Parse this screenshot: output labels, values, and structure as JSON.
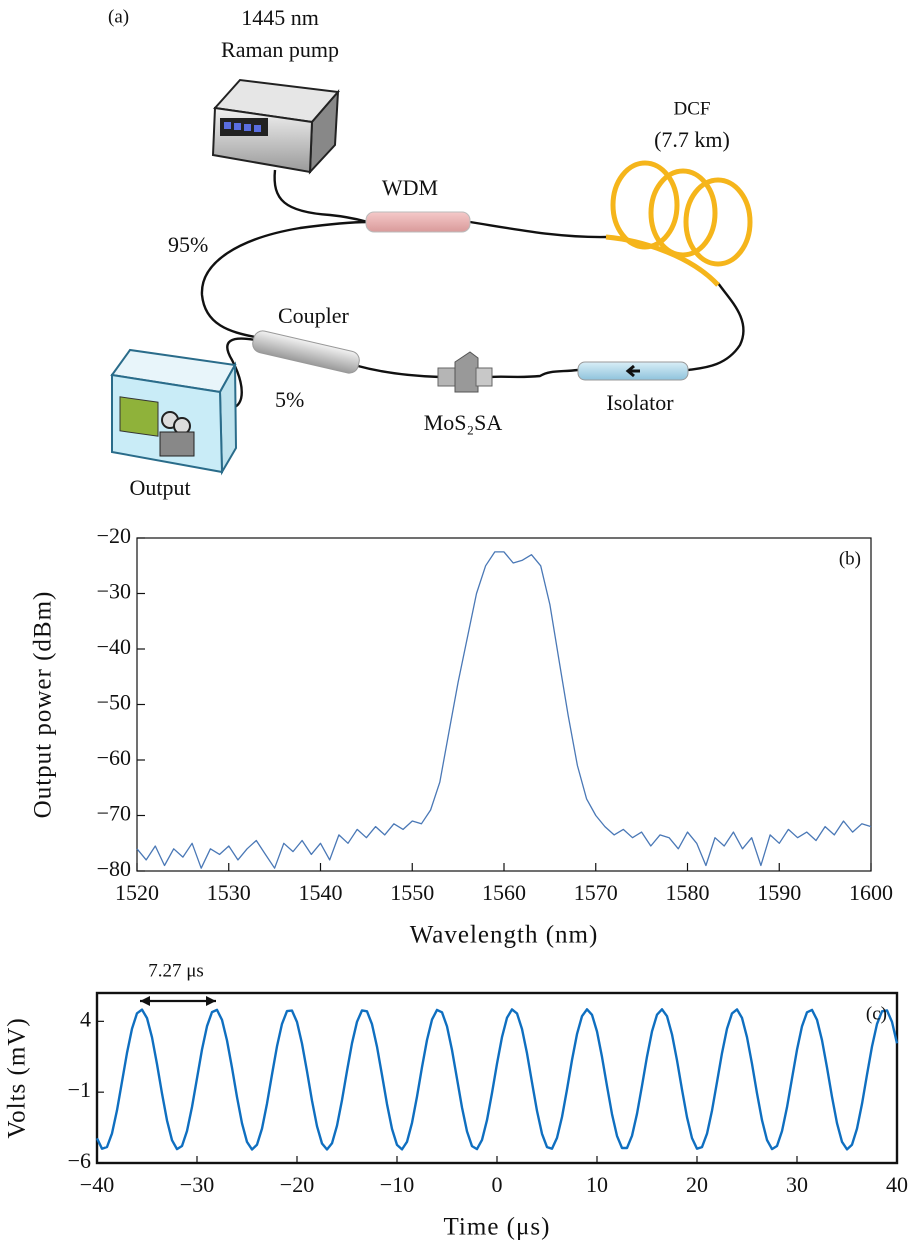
{
  "diagram": {
    "panel_label": "(a)",
    "pump_wavelength": "1445 nm",
    "pump_name": "Raman pump",
    "dcf": "DCF",
    "dcf_length": "(7.7 km)",
    "wdm": "WDM",
    "ratio_high": "95%",
    "coupler": "Coupler",
    "ratio_low": "5%",
    "output": "Output",
    "sa": "MoS₂SA",
    "isolator": "Isolator"
  },
  "chart_data": [
    {
      "type": "line",
      "panel_label": "(b)",
      "x_label": "Wavelength (nm)",
      "y_label": "Output power (dBm)",
      "xlim": [
        1520,
        1600
      ],
      "xticks": [
        1520,
        1530,
        1540,
        1550,
        1560,
        1570,
        1580,
        1590,
        1600
      ],
      "ylim": [
        -80,
        -20
      ],
      "yticks": [
        {
          "value": -80,
          "label": "−80"
        },
        {
          "value": -70,
          "label": "−70"
        },
        {
          "value": -60,
          "label": "−60"
        },
        {
          "value": -50,
          "label": "−50"
        },
        {
          "value": -40,
          "label": "−40"
        },
        {
          "value": -30,
          "label": "−30"
        },
        {
          "value": -20,
          "label": "−20"
        }
      ],
      "color": "#4a78b6",
      "x": [
        1520,
        1521,
        1522,
        1523,
        1524,
        1525,
        1526,
        1527,
        1528,
        1529,
        1530,
        1531,
        1532,
        1533,
        1534,
        1535,
        1536,
        1537,
        1538,
        1539,
        1540,
        1541,
        1542,
        1543,
        1544,
        1545,
        1546,
        1547,
        1548,
        1549,
        1550,
        1551,
        1552,
        1553,
        1554,
        1555,
        1556,
        1557,
        1558,
        1559,
        1560,
        1561,
        1562,
        1563,
        1564,
        1565,
        1566,
        1567,
        1568,
        1569,
        1570,
        1571,
        1572,
        1573,
        1574,
        1575,
        1576,
        1577,
        1578,
        1579,
        1580,
        1581,
        1582,
        1583,
        1584,
        1585,
        1586,
        1587,
        1588,
        1589,
        1590,
        1591,
        1592,
        1593,
        1594,
        1595,
        1596,
        1597,
        1598,
        1599,
        1600
      ],
      "values": [
        -76,
        -78,
        -75.5,
        -79,
        -76,
        -77.5,
        -75,
        -79.5,
        -76,
        -77,
        -75.5,
        -78,
        -76,
        -74.5,
        -77,
        -79.5,
        -75,
        -76.5,
        -74.5,
        -77,
        -75,
        -78,
        -73.5,
        -75,
        -72.5,
        -74,
        -72,
        -73.5,
        -71.5,
        -72.5,
        -71,
        -71.5,
        -69,
        -64,
        -55,
        -46,
        -38,
        -30,
        -25,
        -22.5,
        -22.5,
        -24.5,
        -24,
        -23,
        -25,
        -32,
        -42,
        -52,
        -61,
        -67,
        -70,
        -72,
        -73.5,
        -72.5,
        -74,
        -73,
        -75.5,
        -73.5,
        -74,
        -76,
        -73,
        -75,
        -79,
        -74,
        -75.5,
        -73,
        -76,
        -74,
        -79,
        -73.5,
        -75,
        -72.5,
        -74,
        -73,
        -74.5,
        -72,
        -73.5,
        -71,
        -73,
        -71.5,
        -72
      ]
    },
    {
      "type": "line",
      "panel_label": "(c)",
      "x_label": "Time (μs)",
      "y_label": "Volts (mV)",
      "annotation": "7.27 μs",
      "xlim": [
        -40,
        40
      ],
      "xticks": [
        {
          "value": -40,
          "label": "−40"
        },
        {
          "value": -30,
          "label": "−30"
        },
        {
          "value": -20,
          "label": "−20"
        },
        {
          "value": -10,
          "label": "−10"
        },
        0,
        10,
        20,
        30,
        40
      ],
      "ylim": [
        -6,
        6
      ],
      "yticks": [
        {
          "value": -6,
          "label": "−6"
        },
        {
          "value": -1,
          "label": "−1"
        },
        4
      ],
      "color": "#0f6fc0",
      "x": [
        -40,
        -39.5,
        -39,
        -38.5,
        -38,
        -37.5,
        -37,
        -36.5,
        -36,
        -35.5,
        -35,
        -34.5,
        -34,
        -33.5,
        -33,
        -32.5,
        -32,
        -31.5,
        -31,
        -30.5,
        -30,
        -29.5,
        -29,
        -28.5,
        -28,
        -27.5,
        -27,
        -26.5,
        -26,
        -25.5,
        -25,
        -24.5,
        -24,
        -23.5,
        -23,
        -22.5,
        -22,
        -21.5,
        -21,
        -20.5,
        -20,
        -19.5,
        -19,
        -18.5,
        -18,
        -17.5,
        -17,
        -16.5,
        -16,
        -15.5,
        -15,
        -14.5,
        -14,
        -13.5,
        -13,
        -12.5,
        -12,
        -11.5,
        -11,
        -10.5,
        -10,
        -9.5,
        -9,
        -8.5,
        -8,
        -7.5,
        -7,
        -6.5,
        -6,
        -5.5,
        -5,
        -4.5,
        -4,
        -3.5,
        -3,
        -2.5,
        -2,
        -1.5,
        -1,
        -0.5,
        0,
        0.5,
        1,
        1.5,
        2,
        2.5,
        3,
        3.5,
        4,
        4.5,
        5,
        5.5,
        6,
        6.5,
        7,
        7.5,
        8,
        8.5,
        9,
        9.5,
        10,
        10.5,
        11,
        11.5,
        12,
        12.5,
        13,
        13.5,
        14,
        14.5,
        15,
        15.5,
        16,
        16.5,
        17,
        17.5,
        18,
        18.5,
        19,
        19.5,
        20,
        20.5,
        21,
        21.5,
        22,
        22.5,
        23,
        23.5,
        24,
        24.5,
        25,
        25.5,
        26,
        26.5,
        27,
        27.5,
        28,
        28.5,
        29,
        29.5,
        30,
        30.5,
        31,
        31.5,
        32,
        32.5,
        33,
        33.5,
        34,
        34.5,
        35,
        35.5,
        36,
        36.5,
        37,
        37.5,
        38,
        38.5,
        39,
        39.5,
        40
      ],
      "values": [
        -4.26,
        -4.99,
        -4.87,
        -3.91,
        -2.28,
        -0.26,
        1.77,
        3.48,
        4.57,
        4.83,
        4.23,
        2.87,
        0.98,
        -1.09,
        -2.99,
        -4.39,
        -5.02,
        -4.8,
        -3.74,
        -2.05,
        -0.02,
        2.01,
        3.66,
        4.65,
        4.81,
        4.1,
        2.65,
        0.73,
        -1.35,
        -3.2,
        -4.51,
        -5.05,
        -4.71,
        -3.57,
        -1.81,
        0.25,
        2.24,
        3.82,
        4.72,
        4.76,
        3.95,
        2.43,
        0.47,
        -1.6,
        -3.4,
        -4.62,
        -5.05,
        -4.61,
        -3.37,
        -1.56,
        0.5,
        2.46,
        3.97,
        4.77,
        4.71,
        3.8,
        2.21,
        0.21,
        -1.84,
        -3.59,
        -4.72,
        -5.04,
        -4.5,
        -3.17,
        -1.31,
        0.76,
        2.68,
        4.12,
        4.81,
        4.64,
        3.64,
        1.98,
        -0.05,
        -2.08,
        -3.77,
        -4.81,
        -5.02,
        -4.37,
        -2.97,
        -1.06,
        1.01,
        2.89,
        4.25,
        4.84,
        4.56,
        3.46,
        1.74,
        -0.31,
        -2.32,
        -3.94,
        -4.88,
        -4.99,
        -4.23,
        -2.75,
        -0.81,
        1.27,
        3.1,
        4.36,
        4.85,
        4.46,
        3.28,
        1.49,
        -0.57,
        -2.55,
        -4.09,
        -4.94,
        -4.94,
        -4.08,
        -2.53,
        -0.55,
        1.51,
        3.29,
        4.47,
        4.85,
        4.36,
        3.08,
        1.25,
        -0.82,
        -2.77,
        -4.24,
        -4.99,
        -4.88,
        -3.93,
        -2.3,
        -0.29,
        1.76,
        3.47,
        4.56,
        4.84,
        4.24,
        2.88,
        1,
        -1.08,
        -2.98,
        -4.38,
        -5.02,
        -4.8,
        -3.75,
        -2.07,
        -0.03,
        1.99,
        3.65,
        4.64,
        4.81,
        4.11,
        2.67,
        0.74,
        -1.33,
        -3.19,
        -4.5,
        -5.04,
        -4.71,
        -3.57,
        -1.83,
        0.23,
        2.22,
        3.81,
        4.71,
        4.77,
        3.96,
        2.45
      ]
    }
  ]
}
